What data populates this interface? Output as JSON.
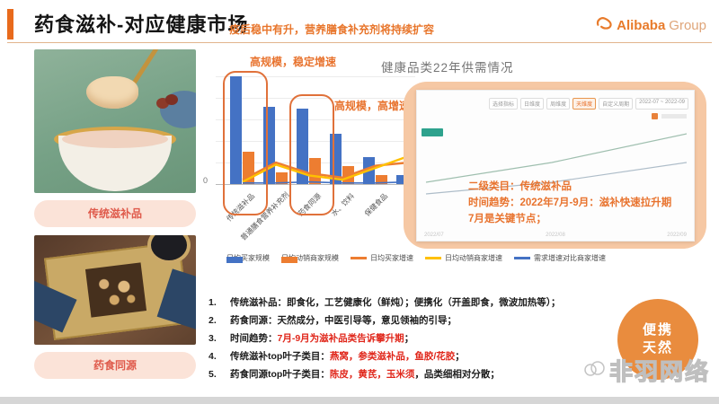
{
  "header": {
    "title": "药食滋补-对应健康市场",
    "subtitle": "疫后稳中有升，营养膳食补充剂将持续扩容",
    "logo_brand": "Alibaba",
    "logo_suffix": "Group"
  },
  "left_column": {
    "label_top": "传统滋补品",
    "label_bottom": "药食同源"
  },
  "chart_data": {
    "type": "bar",
    "categories": [
      "传统滋补品",
      "普通膳食营养补充剂",
      "药食同源",
      "水、饮料",
      "保健食品",
      ""
    ],
    "series": [
      {
        "name": "日均买家规模",
        "kind": "bar",
        "color": "#4472C4",
        "values": [
          100,
          72,
          70,
          47,
          25,
          8
        ]
      },
      {
        "name": "日均动销商家规模",
        "kind": "bar",
        "color": "#ED7D31",
        "values": [
          30,
          11,
          24,
          17,
          8,
          4
        ]
      },
      {
        "name": "日均买家增速",
        "kind": "line",
        "color": "#ED7D31",
        "values": [
          4,
          20,
          10,
          6,
          17,
          20
        ]
      },
      {
        "name": "日均动销商家增速",
        "kind": "line",
        "color": "#FFC000",
        "values": [
          2,
          18,
          8,
          4,
          15,
          26
        ]
      },
      {
        "name": "需求增速对比商家增速",
        "kind": "line",
        "color": "#4472C4",
        "values": [
          1,
          1,
          2,
          1,
          1,
          2
        ]
      }
    ],
    "ylim": [
      0,
      100
    ],
    "y_zero_label": "0",
    "grid": true,
    "legend_position": "bottom",
    "annotations": [
      {
        "text": "高规模，稳定增速",
        "highlight": "传统滋补品"
      },
      {
        "text": "高规模，高增速",
        "highlight": "药食同源"
      }
    ]
  },
  "right_panel": {
    "title": "健康品类22年供需情况",
    "controls": [
      "选择指标",
      "日维度",
      "周维度",
      "天维度",
      "自定义周期",
      "2022-07 ~ 2022-09"
    ],
    "active_control": "天维度",
    "notes": [
      "二级类目：传统滋补品",
      "时间趋势：2022年7月-9月：滋补快速拉升期",
      "7月是关键节点；"
    ],
    "x_ticks": [
      "2022/07",
      "2022/08",
      "2022/09"
    ]
  },
  "notes_list": [
    {
      "num": "1.",
      "parts": [
        {
          "t": "传统滋补品：即食化，工艺健康化（鲜炖）；便携化（开盖即食，微波加热等）；",
          "red": false
        }
      ]
    },
    {
      "num": "2.",
      "parts": [
        {
          "t": "药食同源：天然成分，中医引导等，意见领袖的引导；",
          "red": false
        }
      ]
    },
    {
      "num": "3.",
      "parts": [
        {
          "t": "时间趋势：",
          "red": false
        },
        {
          "t": "7月-9月为滋补品类告诉攀升期",
          "red": true
        },
        {
          "t": "；",
          "red": false
        }
      ]
    },
    {
      "num": "4.",
      "parts": [
        {
          "t": "传统滋补top叶子类目：",
          "red": false
        },
        {
          "t": "燕窝，参类滋补品，鱼胶/花胶",
          "red": true
        },
        {
          "t": "；",
          "red": false
        }
      ]
    },
    {
      "num": "5.",
      "parts": [
        {
          "t": "药食同源top叶子类目：",
          "red": false
        },
        {
          "t": "陈皮，黄芪，玉米须",
          "red": true
        },
        {
          "t": "，品类细相对分散；",
          "red": false
        }
      ]
    }
  ],
  "badge": {
    "lines": [
      "便携",
      "天然"
    ]
  },
  "watermark": {
    "text": "非羽网络"
  },
  "colors": {
    "accent": "#E86A1C",
    "red": "#E0261A",
    "bar_blue": "#4472C4",
    "bar_orange": "#ED7D31",
    "line_yellow": "#FFC000",
    "panel_peach": "#F6C8A4",
    "pill_bg": "#FBE3D8",
    "pill_text": "#DF5A4B",
    "badge_orange": "#E98C3E"
  }
}
